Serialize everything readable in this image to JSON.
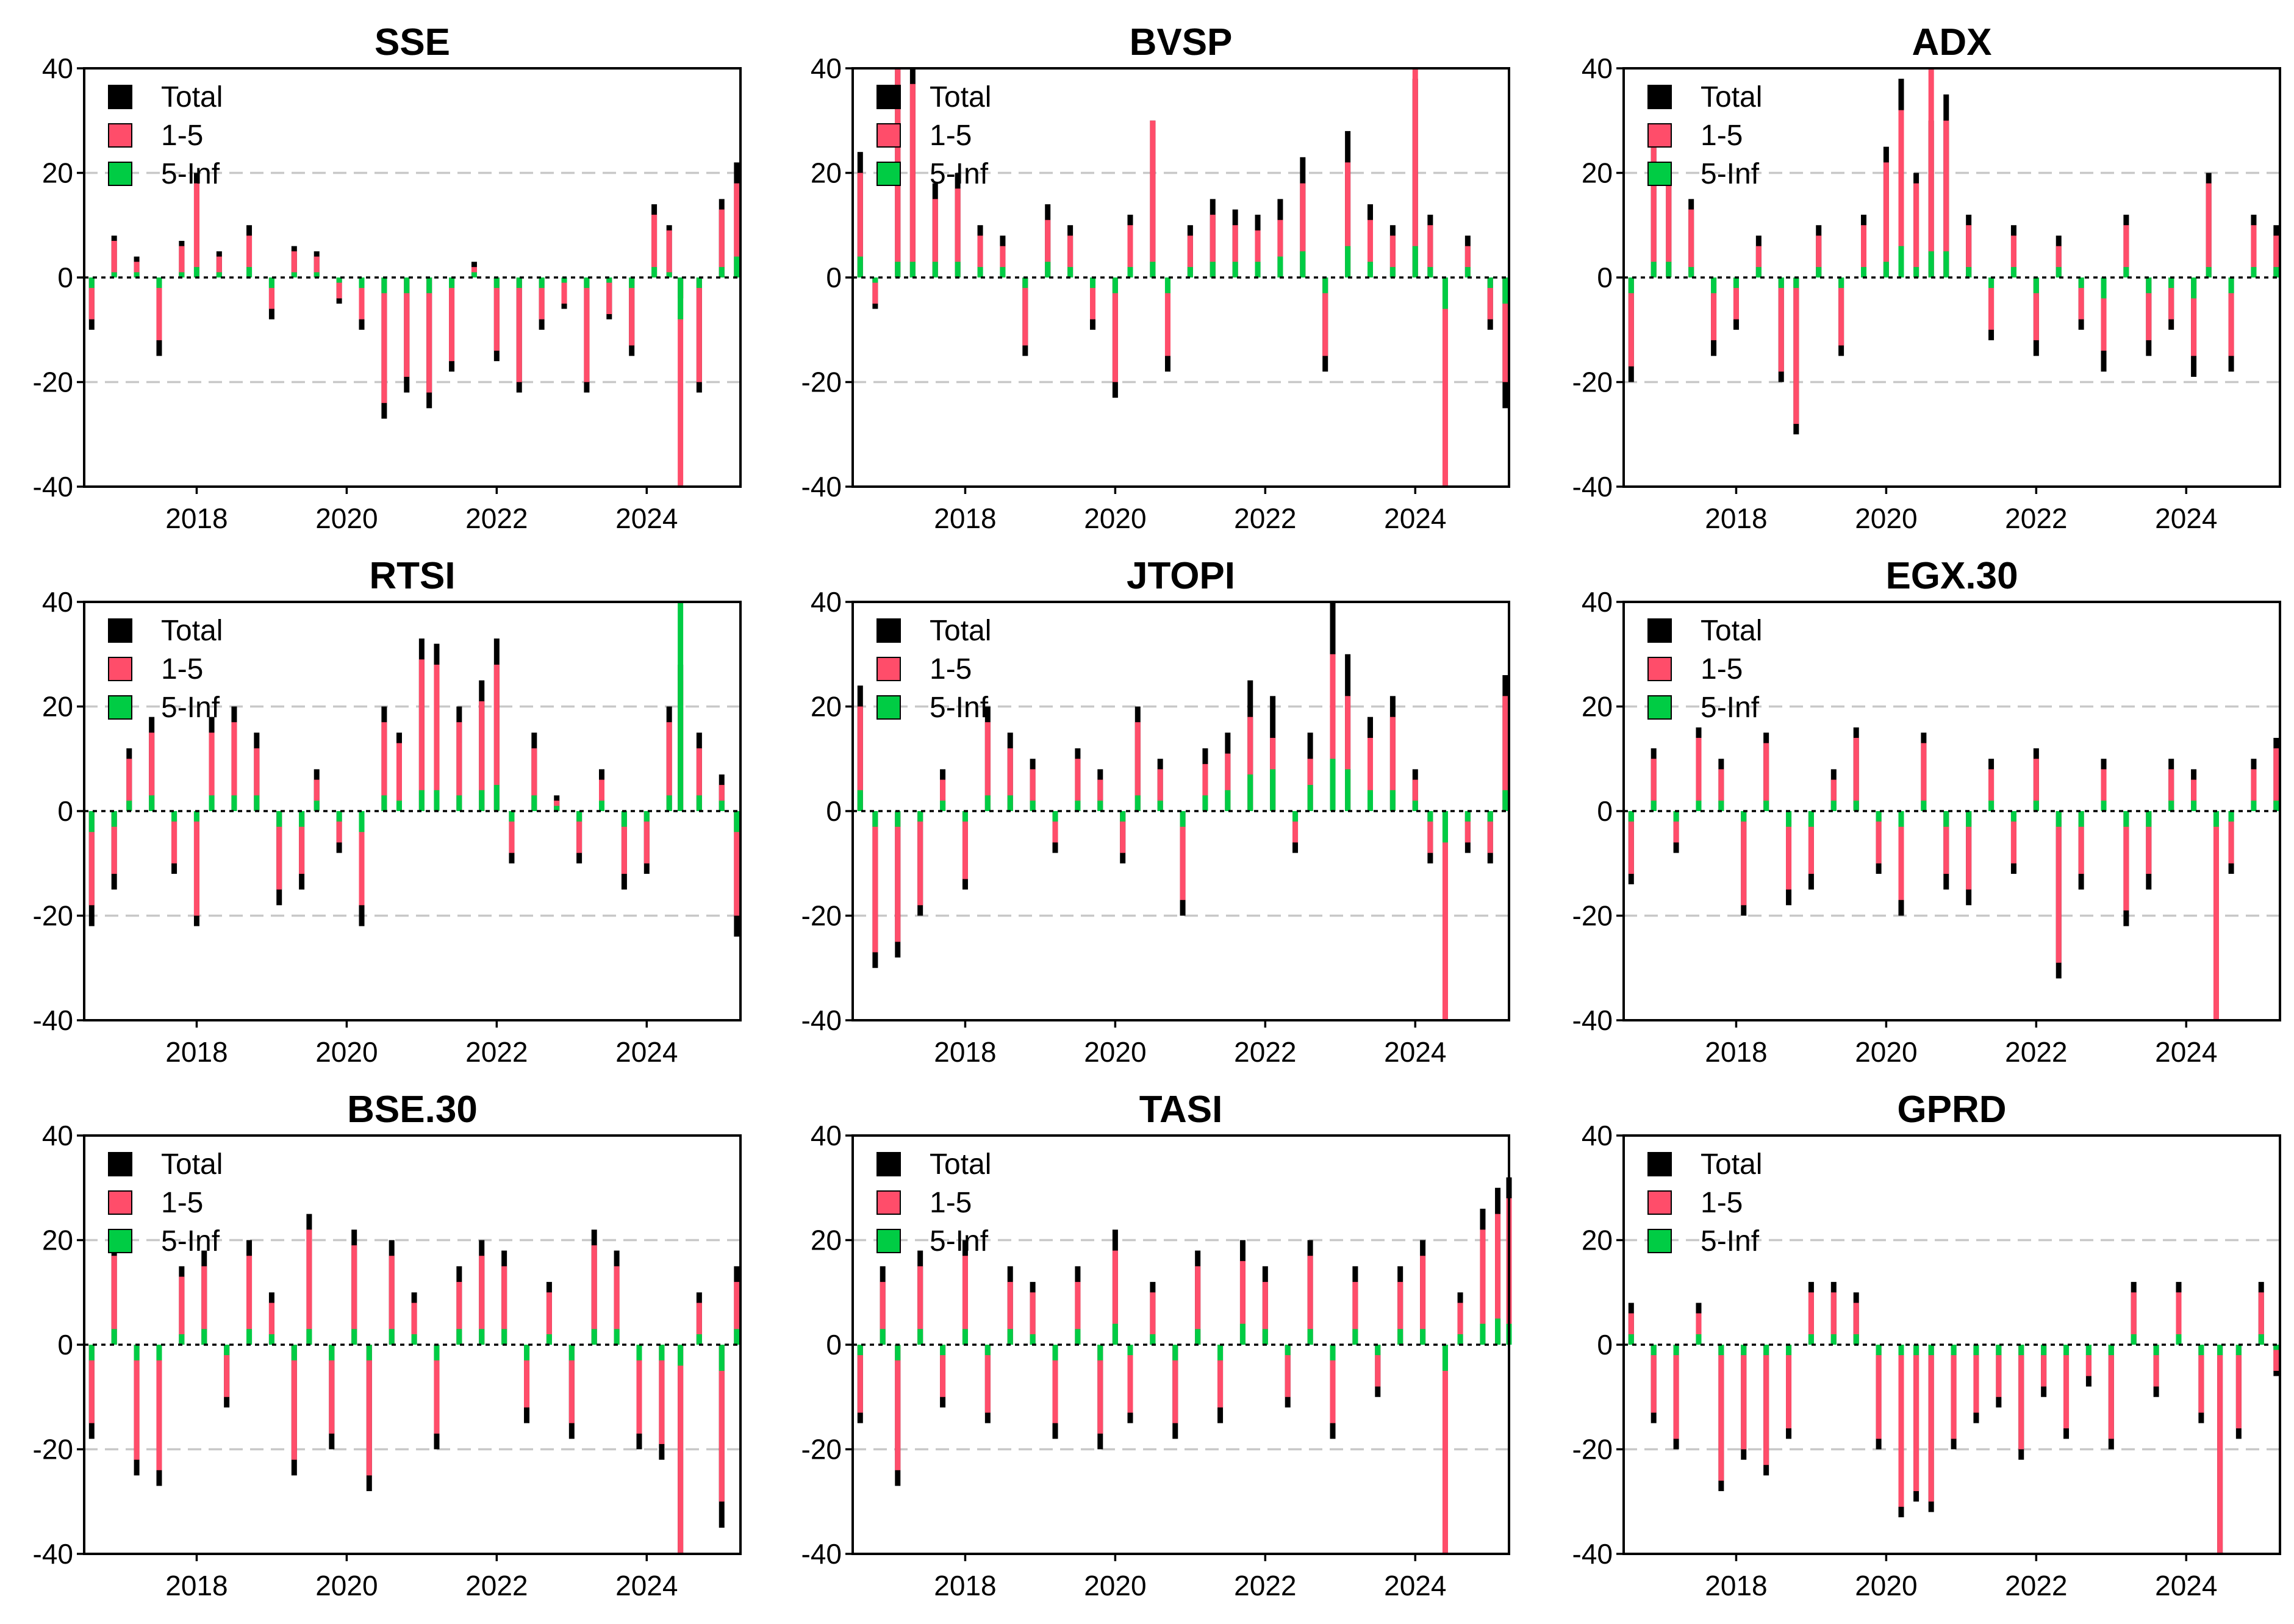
{
  "chart_data": {
    "type": "bar",
    "layout": "3x3 small multiples, stacked bars over time",
    "legend": [
      "Total",
      "1-5",
      "5-Inf"
    ],
    "colors": {
      "Total": "#000000",
      "1-5": "#ff4d6a",
      "5-Inf": "#00cc44"
    },
    "xlim": [
      2016.5,
      2025.25
    ],
    "ylim": [
      -40,
      40
    ],
    "x_ticks": [
      "2018",
      "2020",
      "2022",
      "2024"
    ],
    "y_ticks": [
      "40",
      "20",
      "0",
      "-20",
      "-40"
    ],
    "grid": "dashed horizontal at +/-20",
    "panels": [
      {
        "title": "SSE",
        "x": [
          2016.6,
          2016.9,
          2017.2,
          2017.5,
          2017.8,
          2018.0,
          2018.3,
          2018.7,
          2019.0,
          2019.3,
          2019.6,
          2019.9,
          2020.2,
          2020.5,
          2020.8,
          2021.1,
          2021.4,
          2021.7,
          2022.0,
          2022.3,
          2022.6,
          2022.9,
          2023.2,
          2023.5,
          2023.8,
          2024.1,
          2024.3,
          2024.45,
          2024.7,
          2025.0,
          2025.2
        ],
        "total": [
          -10,
          8,
          4,
          -15,
          7,
          20,
          5,
          10,
          -8,
          6,
          5,
          -5,
          -10,
          -27,
          -22,
          -25,
          -18,
          3,
          -16,
          -22,
          -10,
          -6,
          -22,
          -8,
          -15,
          14,
          10,
          -4,
          -22,
          15,
          22
        ],
        "short": [
          -8,
          7,
          3,
          -12,
          6,
          18,
          4,
          8,
          -6,
          5,
          4,
          -4,
          -8,
          -24,
          -19,
          -22,
          -16,
          2,
          -14,
          -20,
          -8,
          -5,
          -20,
          -7,
          -13,
          12,
          9,
          -40,
          -20,
          13,
          18
        ],
        "long": [
          -2,
          1,
          1,
          -2,
          1,
          2,
          1,
          2,
          -2,
          1,
          1,
          -1,
          -2,
          -3,
          -3,
          -3,
          -2,
          1,
          -2,
          -2,
          -2,
          -1,
          -2,
          -1,
          -2,
          2,
          1,
          -8,
          -2,
          2,
          4
        ]
      },
      {
        "title": "BVSP",
        "x": [
          2016.6,
          2016.8,
          2017.1,
          2017.3,
          2017.6,
          2017.9,
          2018.2,
          2018.5,
          2018.8,
          2019.1,
          2019.4,
          2019.7,
          2020.0,
          2020.2,
          2020.5,
          2020.7,
          2021.0,
          2021.3,
          2021.6,
          2021.9,
          2022.2,
          2022.5,
          2022.8,
          2023.1,
          2023.4,
          2023.7,
          2024.0,
          2024.2,
          2024.4,
          2024.7,
          2025.0,
          2025.2
        ],
        "total": [
          24,
          -6,
          40,
          40,
          18,
          20,
          10,
          8,
          -15,
          14,
          10,
          -10,
          -23,
          12,
          30,
          -18,
          10,
          15,
          13,
          12,
          15,
          23,
          -18,
          28,
          14,
          10,
          38,
          12,
          -40,
          8,
          -10,
          -25
        ],
        "short": [
          20,
          -5,
          40,
          37,
          15,
          17,
          8,
          6,
          -13,
          11,
          8,
          -8,
          -20,
          10,
          30,
          -15,
          8,
          12,
          10,
          9,
          11,
          18,
          -15,
          22,
          11,
          8,
          40,
          10,
          -40,
          6,
          -8,
          -20
        ],
        "long": [
          4,
          -1,
          3,
          3,
          3,
          3,
          2,
          2,
          -2,
          3,
          2,
          -2,
          -3,
          2,
          3,
          -3,
          2,
          3,
          3,
          3,
          4,
          5,
          -3,
          6,
          3,
          2,
          6,
          2,
          -6,
          2,
          -2,
          -5
        ]
      },
      {
        "title": "ADX",
        "x": [
          2016.6,
          2016.9,
          2017.1,
          2017.4,
          2017.7,
          2018.0,
          2018.3,
          2018.6,
          2018.8,
          2019.1,
          2019.4,
          2019.7,
          2020.0,
          2020.2,
          2020.4,
          2020.6,
          2020.8,
          2021.1,
          2021.4,
          2021.7,
          2022.0,
          2022.3,
          2022.6,
          2022.9,
          2023.2,
          2023.5,
          2023.8,
          2024.1,
          2024.3,
          2024.6,
          2024.9,
          2025.2
        ],
        "total": [
          -20,
          28,
          22,
          15,
          -15,
          -10,
          8,
          -20,
          -30,
          10,
          -15,
          12,
          25,
          38,
          20,
          30,
          35,
          12,
          -12,
          10,
          -15,
          8,
          -10,
          -18,
          12,
          -15,
          -10,
          -19,
          20,
          -18,
          12,
          10
        ],
        "short": [
          -17,
          25,
          19,
          13,
          -12,
          -8,
          6,
          -18,
          -28,
          8,
          -13,
          10,
          22,
          32,
          18,
          40,
          30,
          10,
          -10,
          8,
          -12,
          6,
          -8,
          -14,
          10,
          -12,
          -8,
          -15,
          18,
          -15,
          10,
          8
        ],
        "long": [
          -3,
          3,
          3,
          2,
          -3,
          -2,
          2,
          -2,
          -2,
          2,
          -2,
          2,
          3,
          6,
          2,
          5,
          5,
          2,
          -2,
          2,
          -3,
          2,
          -2,
          -4,
          2,
          -3,
          -2,
          -4,
          2,
          -3,
          2,
          2
        ]
      },
      {
        "title": "RTSI",
        "x": [
          2016.6,
          2016.9,
          2017.1,
          2017.4,
          2017.7,
          2018.0,
          2018.2,
          2018.5,
          2018.8,
          2019.1,
          2019.4,
          2019.6,
          2019.9,
          2020.2,
          2020.5,
          2020.7,
          2021.0,
          2021.2,
          2021.5,
          2021.8,
          2022.0,
          2022.2,
          2022.5,
          2022.8,
          2023.1,
          2023.4,
          2023.7,
          2024.0,
          2024.3,
          2024.45,
          2024.7,
          2025.0,
          2025.2
        ],
        "total": [
          -22,
          -15,
          12,
          18,
          -12,
          -22,
          18,
          20,
          15,
          -18,
          -15,
          8,
          -8,
          -22,
          20,
          15,
          33,
          32,
          20,
          25,
          33,
          -10,
          15,
          3,
          -10,
          8,
          -15,
          -12,
          20,
          28,
          15,
          7,
          -24
        ],
        "short": [
          -18,
          -12,
          10,
          15,
          -10,
          -20,
          15,
          17,
          12,
          -15,
          -12,
          6,
          -6,
          -18,
          17,
          13,
          29,
          28,
          17,
          21,
          28,
          -8,
          12,
          2,
          -8,
          6,
          -12,
          -10,
          17,
          25,
          12,
          5,
          -20
        ],
        "long": [
          -4,
          -3,
          2,
          3,
          -2,
          -2,
          3,
          3,
          3,
          -3,
          -3,
          2,
          -2,
          -4,
          3,
          2,
          4,
          4,
          3,
          4,
          5,
          -2,
          3,
          1,
          -2,
          2,
          -3,
          -2,
          3,
          40,
          3,
          2,
          -4
        ]
      },
      {
        "title": "JTOPI",
        "x": [
          2016.6,
          2016.8,
          2017.1,
          2017.4,
          2017.7,
          2018.0,
          2018.3,
          2018.6,
          2018.9,
          2019.2,
          2019.5,
          2019.8,
          2020.1,
          2020.3,
          2020.6,
          2020.9,
          2021.2,
          2021.5,
          2021.8,
          2022.1,
          2022.4,
          2022.6,
          2022.9,
          2023.1,
          2023.4,
          2023.7,
          2024.0,
          2024.2,
          2024.4,
          2024.7,
          2025.0,
          2025.2
        ],
        "total": [
          24,
          -30,
          -28,
          -20,
          8,
          -15,
          20,
          15,
          10,
          -8,
          12,
          8,
          -10,
          20,
          10,
          -20,
          12,
          15,
          25,
          22,
          -8,
          15,
          40,
          30,
          18,
          22,
          8,
          -10,
          -40,
          -8,
          -10,
          26
        ],
        "short": [
          20,
          -27,
          -25,
          -18,
          6,
          -13,
          17,
          12,
          8,
          -6,
          10,
          6,
          -8,
          17,
          8,
          -17,
          9,
          11,
          18,
          14,
          -6,
          10,
          30,
          22,
          14,
          18,
          6,
          -8,
          -40,
          -6,
          -8,
          22
        ],
        "long": [
          4,
          -3,
          -3,
          -2,
          2,
          -2,
          3,
          3,
          2,
          -2,
          2,
          2,
          -2,
          3,
          2,
          -3,
          3,
          4,
          7,
          8,
          -2,
          5,
          10,
          8,
          4,
          4,
          2,
          -2,
          -6,
          -2,
          -2,
          4
        ]
      },
      {
        "title": "EGX.30",
        "x": [
          2016.6,
          2016.9,
          2017.2,
          2017.5,
          2017.8,
          2018.1,
          2018.4,
          2018.7,
          2019.0,
          2019.3,
          2019.6,
          2019.9,
          2020.2,
          2020.5,
          2020.8,
          2021.1,
          2021.4,
          2021.7,
          2022.0,
          2022.3,
          2022.6,
          2022.9,
          2023.2,
          2023.5,
          2023.8,
          2024.1,
          2024.4,
          2024.6,
          2024.9,
          2025.2
        ],
        "total": [
          -14,
          12,
          -8,
          16,
          10,
          -20,
          15,
          -18,
          -15,
          8,
          16,
          -12,
          -20,
          15,
          -15,
          -18,
          10,
          -12,
          12,
          -32,
          -15,
          10,
          -22,
          -15,
          10,
          8,
          -40,
          -12,
          10,
          14
        ],
        "short": [
          -12,
          10,
          -6,
          14,
          8,
          -18,
          13,
          -15,
          -12,
          6,
          14,
          -10,
          -17,
          13,
          -12,
          -15,
          8,
          -10,
          10,
          -29,
          -12,
          8,
          -19,
          -12,
          8,
          6,
          -40,
          -10,
          8,
          12
        ],
        "long": [
          -2,
          2,
          -2,
          2,
          2,
          -2,
          2,
          -3,
          -3,
          2,
          2,
          -2,
          -3,
          2,
          -3,
          -3,
          2,
          -2,
          2,
          -3,
          -3,
          2,
          -3,
          -3,
          2,
          2,
          -3,
          -2,
          2,
          2
        ]
      },
      {
        "title": "BSE.30",
        "x": [
          2016.6,
          2016.9,
          2017.2,
          2017.5,
          2017.8,
          2018.1,
          2018.4,
          2018.7,
          2019.0,
          2019.3,
          2019.5,
          2019.8,
          2020.1,
          2020.3,
          2020.6,
          2020.9,
          2021.2,
          2021.5,
          2021.8,
          2022.1,
          2022.4,
          2022.7,
          2023.0,
          2023.3,
          2023.6,
          2023.9,
          2024.2,
          2024.45,
          2024.7,
          2025.0,
          2025.2
        ],
        "total": [
          -18,
          20,
          -25,
          -27,
          15,
          18,
          -12,
          20,
          10,
          -25,
          25,
          -20,
          22,
          -28,
          20,
          10,
          -20,
          15,
          20,
          18,
          -15,
          12,
          -18,
          22,
          18,
          -20,
          -22,
          -40,
          10,
          -35,
          15
        ],
        "short": [
          -15,
          17,
          -22,
          -24,
          13,
          15,
          -10,
          17,
          8,
          -22,
          22,
          -17,
          19,
          -25,
          17,
          8,
          -17,
          12,
          17,
          15,
          -12,
          10,
          -15,
          19,
          15,
          -17,
          -19,
          -40,
          8,
          -30,
          12
        ],
        "long": [
          -3,
          3,
          -3,
          -3,
          2,
          3,
          -2,
          3,
          2,
          -3,
          3,
          -3,
          3,
          -3,
          3,
          2,
          -3,
          3,
          3,
          3,
          -3,
          2,
          -3,
          3,
          3,
          -3,
          -3,
          -4,
          2,
          -5,
          3
        ]
      },
      {
        "title": "TASI",
        "x": [
          2016.6,
          2016.9,
          2017.1,
          2017.4,
          2017.7,
          2018.0,
          2018.3,
          2018.6,
          2018.9,
          2019.2,
          2019.5,
          2019.8,
          2020.0,
          2020.2,
          2020.5,
          2020.8,
          2021.1,
          2021.4,
          2021.7,
          2022.0,
          2022.3,
          2022.6,
          2022.9,
          2023.2,
          2023.5,
          2023.8,
          2024.1,
          2024.4,
          2024.6,
          2024.9,
          2025.1,
          2025.25
        ],
        "total": [
          -15,
          15,
          -27,
          18,
          -12,
          20,
          -15,
          15,
          12,
          -18,
          15,
          -20,
          22,
          -15,
          12,
          -18,
          18,
          -15,
          20,
          15,
          -12,
          20,
          -18,
          15,
          -10,
          15,
          20,
          -40,
          10,
          26,
          30,
          32
        ],
        "short": [
          -13,
          12,
          -24,
          15,
          -10,
          17,
          -13,
          12,
          10,
          -15,
          12,
          -17,
          18,
          -13,
          10,
          -15,
          15,
          -12,
          16,
          12,
          -10,
          17,
          -15,
          12,
          -8,
          12,
          17,
          -40,
          8,
          22,
          25,
          28
        ],
        "long": [
          -2,
          3,
          -3,
          3,
          -2,
          3,
          -2,
          3,
          2,
          -3,
          3,
          -3,
          4,
          -2,
          2,
          -3,
          3,
          -3,
          4,
          3,
          -2,
          3,
          -3,
          3,
          -2,
          3,
          3,
          -5,
          2,
          4,
          5,
          4
        ]
      },
      {
        "title": "GPRD",
        "x": [
          2016.6,
          2016.9,
          2017.2,
          2017.5,
          2017.8,
          2018.1,
          2018.4,
          2018.7,
          2019.0,
          2019.3,
          2019.6,
          2019.9,
          2020.2,
          2020.4,
          2020.6,
          2020.9,
          2021.2,
          2021.5,
          2021.8,
          2022.1,
          2022.4,
          2022.7,
          2023.0,
          2023.3,
          2023.6,
          2023.9,
          2024.2,
          2024.45,
          2024.7,
          2025.0,
          2025.2
        ],
        "total": [
          8,
          -15,
          -20,
          8,
          -28,
          -22,
          -25,
          -18,
          12,
          12,
          10,
          -20,
          -33,
          -30,
          -32,
          -20,
          -15,
          -12,
          -22,
          -10,
          -18,
          -8,
          -20,
          12,
          -10,
          12,
          -15,
          -40,
          -18,
          12,
          -6
        ],
        "short": [
          6,
          -13,
          -18,
          6,
          -26,
          -20,
          -23,
          -16,
          10,
          10,
          8,
          -18,
          -31,
          -28,
          -30,
          -18,
          -13,
          -10,
          -20,
          -8,
          -16,
          -6,
          -18,
          10,
          -8,
          10,
          -13,
          -40,
          -16,
          10,
          -5
        ],
        "long": [
          2,
          -2,
          -2,
          2,
          -2,
          -2,
          -2,
          -2,
          2,
          2,
          2,
          -2,
          -2,
          -2,
          -2,
          -2,
          -2,
          -2,
          -2,
          -2,
          -2,
          -2,
          -2,
          2,
          -2,
          2,
          -2,
          -2,
          -2,
          2,
          -1
        ]
      }
    ]
  }
}
